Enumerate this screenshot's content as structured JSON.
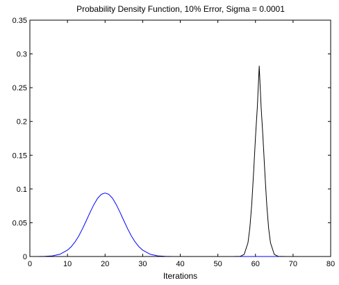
{
  "chart_data": {
    "type": "line",
    "title": "Probability Density Function, 10% Error, Sigma = 0.0001",
    "xlabel": "Iterations",
    "ylabel": "",
    "xlim": [
      0,
      80
    ],
    "ylim": [
      0,
      0.35
    ],
    "xticks": [
      0,
      10,
      20,
      30,
      40,
      50,
      60,
      70,
      80
    ],
    "yticks": [
      0,
      0.05,
      0.1,
      0.15,
      0.2,
      0.25,
      0.3,
      0.35
    ],
    "xtick_labels": [
      "0",
      "10",
      "20",
      "30",
      "40",
      "50",
      "60",
      "70",
      "80"
    ],
    "ytick_labels": [
      "0",
      "0.05",
      "0.1",
      "0.15",
      "0.2",
      "0.25",
      "0.3",
      "0.35"
    ],
    "grid": false,
    "legend": "none",
    "series": [
      {
        "color": "#0000ff",
        "x": [
          0,
          2,
          4,
          6,
          8,
          10,
          11,
          12,
          13,
          14,
          15,
          16,
          17,
          18,
          19,
          20,
          21,
          22,
          23,
          24,
          25,
          26,
          27,
          28,
          29,
          30,
          32,
          34,
          36,
          38,
          40,
          45,
          50,
          55,
          60,
          65,
          70
        ],
        "y": [
          0,
          0,
          0.0002,
          0.0009,
          0.0033,
          0.0094,
          0.0145,
          0.0215,
          0.0304,
          0.0411,
          0.053,
          0.0652,
          0.0766,
          0.0861,
          0.0921,
          0.094,
          0.0921,
          0.0861,
          0.0766,
          0.0652,
          0.053,
          0.0411,
          0.0304,
          0.0215,
          0.0145,
          0.0094,
          0.0033,
          0.0009,
          0.0002,
          0,
          0,
          0,
          0,
          0,
          0,
          0,
          0
        ]
      },
      {
        "color": "#000000",
        "x": [
          0,
          10,
          20,
          30,
          40,
          50,
          54,
          56,
          57,
          58,
          58.5,
          59,
          59.5,
          60,
          60.5,
          61,
          61.5,
          62,
          62.5,
          63,
          63.5,
          64,
          65,
          66,
          68,
          70
        ],
        "y": [
          0,
          0,
          0,
          0,
          0,
          0,
          0,
          0.0003,
          0.0031,
          0.0202,
          0.0419,
          0.0767,
          0.1238,
          0.1763,
          0.2217,
          0.282,
          0.2217,
          0.1763,
          0.1238,
          0.0767,
          0.0419,
          0.0202,
          0.0031,
          0.0003,
          0,
          0
        ]
      }
    ]
  }
}
